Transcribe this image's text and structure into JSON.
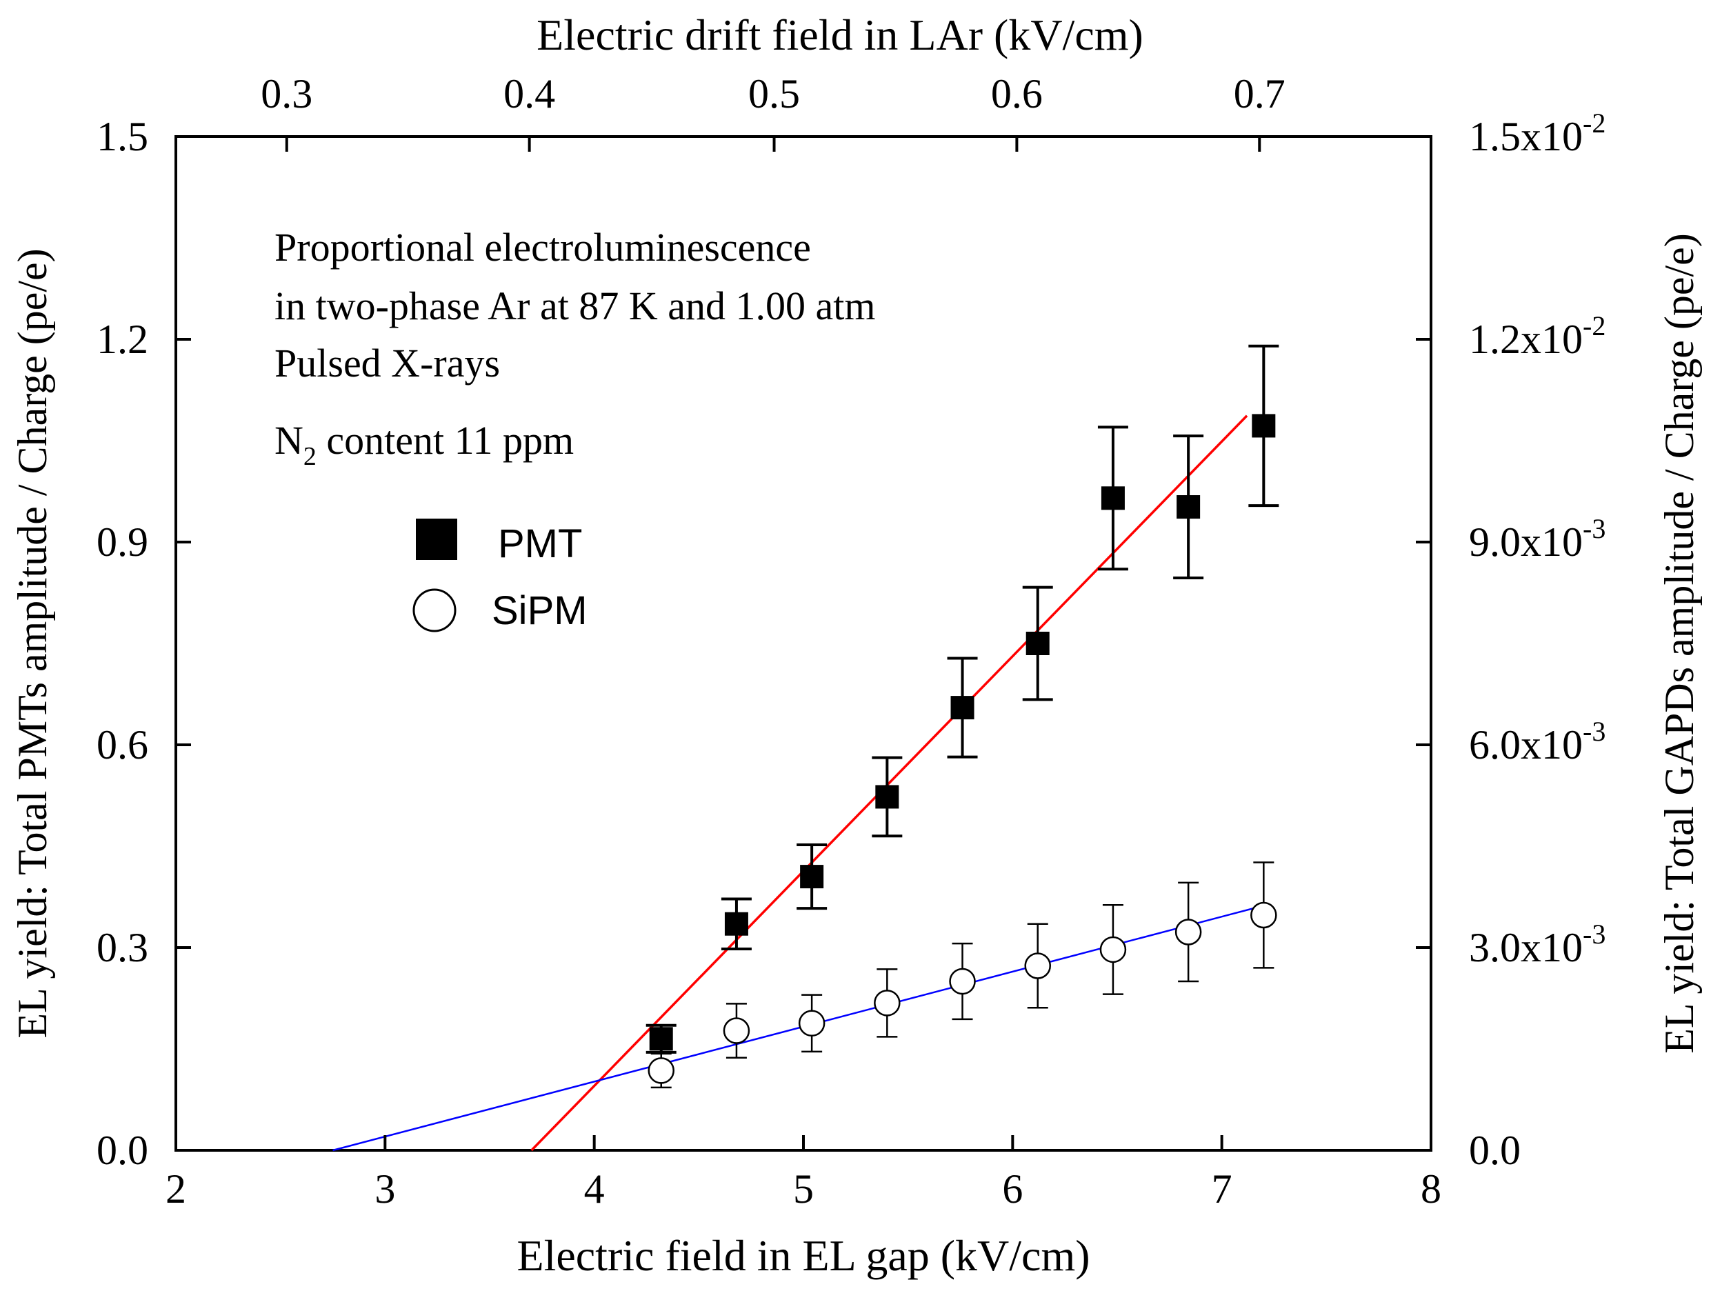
{
  "chart_data": {
    "type": "scatter",
    "title": "",
    "xlabel": "Electric field in EL gap (kV/cm)",
    "xlabel_top": "Electric drift field in LAr (kV/cm)",
    "ylabel": "EL yield: Total PMTs amplitude / Charge (pe/e)",
    "ylabel_right": "EL yield: Total GAPDs amplitude / Charge (pe/e)",
    "xlim": [
      2,
      8
    ],
    "ylim": [
      0,
      1.5
    ],
    "ylim_right": [
      0,
      0.015
    ],
    "x_ticks": [
      "2",
      "3",
      "4",
      "5",
      "6",
      "7",
      "8"
    ],
    "y_ticks": [
      "0.0",
      "0.3",
      "0.6",
      "0.9",
      "1.2",
      "1.5"
    ],
    "top_ticks": [
      {
        "label": "0.3",
        "x_el": 2.53
      },
      {
        "label": "0.4",
        "x_el": 3.69
      },
      {
        "label": "0.5",
        "x_el": 4.86
      },
      {
        "label": "0.6",
        "x_el": 6.02
      },
      {
        "label": "0.7",
        "x_el": 7.18
      }
    ],
    "right_ticks": [
      {
        "mantissa": "0.0",
        "exp": "",
        "value": 0.0
      },
      {
        "mantissa": "3.0x10",
        "exp": "-3",
        "value": 0.003
      },
      {
        "mantissa": "6.0x10",
        "exp": "-3",
        "value": 0.006
      },
      {
        "mantissa": "9.0x10",
        "exp": "-3",
        "value": 0.009
      },
      {
        "mantissa": "1.2x10",
        "exp": "-2",
        "value": 0.012
      },
      {
        "mantissa": "1.5x10",
        "exp": "-2",
        "value": 0.015
      }
    ],
    "annotations": [
      "Proportional electroluminescence",
      "in two-phase Ar at 87 K and 1.00 atm",
      "Pulsed X-rays"
    ],
    "n2_note": {
      "base": "N",
      "sub": "2",
      "rest": " content 11 ppm"
    },
    "grid": false,
    "legend_position": "upper-left",
    "series": [
      {
        "name": "PMT",
        "marker": "filled-square",
        "axis": "left",
        "color": "#000000",
        "points": [
          {
            "x": 4.32,
            "y": 0.165,
            "err": 0.02
          },
          {
            "x": 4.68,
            "y": 0.335,
            "err": 0.037
          },
          {
            "x": 5.04,
            "y": 0.405,
            "err": 0.047
          },
          {
            "x": 5.4,
            "y": 0.523,
            "err": 0.058
          },
          {
            "x": 5.76,
            "y": 0.655,
            "err": 0.073
          },
          {
            "x": 6.12,
            "y": 0.75,
            "err": 0.083
          },
          {
            "x": 6.48,
            "y": 0.965,
            "err": 0.105
          },
          {
            "x": 6.84,
            "y": 0.952,
            "err": 0.105
          },
          {
            "x": 7.2,
            "y": 1.072,
            "err": 0.118
          }
        ],
        "fit": {
          "color": "#ff0000",
          "x": [
            3.7,
            7.12
          ],
          "y": [
            0.0,
            1.087
          ]
        }
      },
      {
        "name": "SiPM",
        "marker": "open-circle",
        "axis": "right",
        "color": "#000000",
        "points": [
          {
            "x": 4.32,
            "y": 0.00118,
            "err": 0.00025
          },
          {
            "x": 4.68,
            "y": 0.00177,
            "err": 0.0004
          },
          {
            "x": 5.04,
            "y": 0.00188,
            "err": 0.00042
          },
          {
            "x": 5.4,
            "y": 0.00218,
            "err": 0.0005
          },
          {
            "x": 5.76,
            "y": 0.0025,
            "err": 0.00056
          },
          {
            "x": 6.12,
            "y": 0.00273,
            "err": 0.00062
          },
          {
            "x": 6.48,
            "y": 0.00297,
            "err": 0.00066
          },
          {
            "x": 6.84,
            "y": 0.00323,
            "err": 0.00073
          },
          {
            "x": 7.2,
            "y": 0.00348,
            "err": 0.00078
          }
        ],
        "fit": {
          "color": "#0000ff",
          "x": [
            2.75,
            7.2
          ],
          "y": [
            0.0,
            0.00362
          ]
        }
      }
    ]
  }
}
